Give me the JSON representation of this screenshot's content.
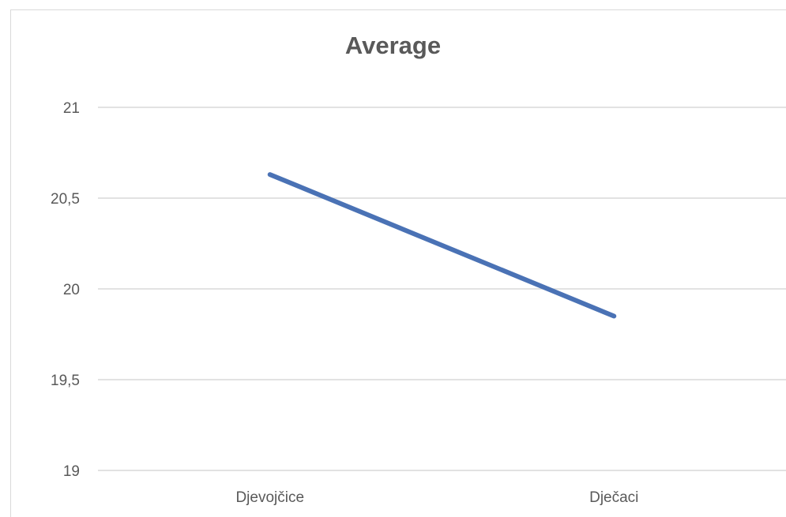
{
  "chart_data": {
    "type": "line",
    "title": "Average",
    "categories": [
      "Djevojčice",
      "Dječaci"
    ],
    "series": [
      {
        "values": [
          20.63,
          19.85
        ],
        "color": "#4a72b5"
      }
    ],
    "ylim": [
      19,
      21
    ],
    "yticks": [
      "19",
      "19,5",
      "20",
      "20,5",
      "21"
    ],
    "ytick_values": [
      19,
      19.5,
      20,
      20.5,
      21
    ],
    "grid": true,
    "legend": "none",
    "gridline_color": "#d9d9d9"
  }
}
